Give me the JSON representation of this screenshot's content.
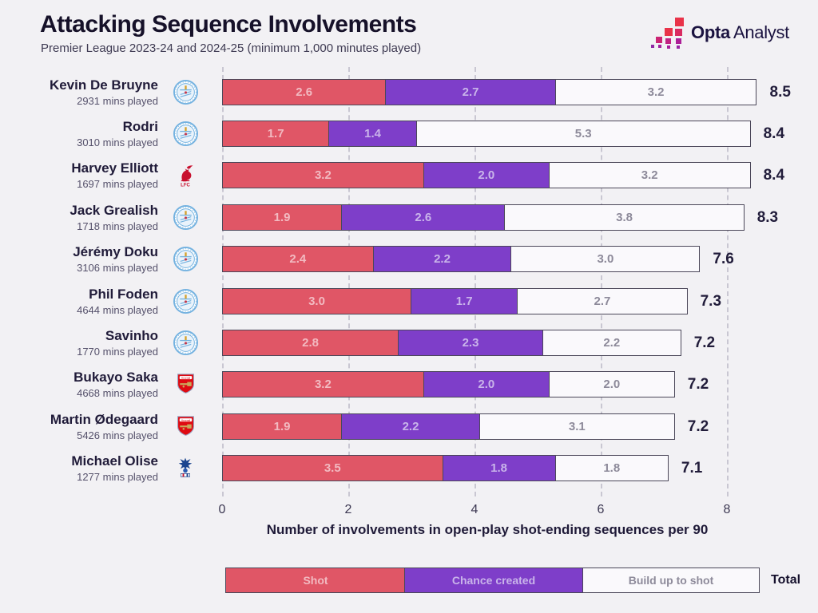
{
  "header": {
    "title": "Attacking Sequence Involvements",
    "subtitle": "Premier League 2023-24 and 2024-25 (minimum 1,000 minutes played)",
    "logo": {
      "bold": "Opta",
      "regular": "Analyst"
    }
  },
  "chart_data": {
    "type": "bar",
    "orientation": "horizontal",
    "stacked": true,
    "xlabel": "Number of involvements in open-play shot-ending sequences per 90",
    "xticks": [
      0,
      2,
      4,
      6,
      8
    ],
    "xlim": [
      0,
      8.5
    ],
    "grid": "dashed-vertical",
    "legend_position": "bottom",
    "total_label": "Total",
    "series_labels": [
      "Shot",
      "Chance created",
      "Build up to shot"
    ],
    "colors": {
      "shot": "#e05666",
      "shot_text": "#f2bac1",
      "chance_created": "#7e3ec9",
      "chance_created_text": "#c9b4ea",
      "build_up": "#faf9fc",
      "build_up_text": "#8d8a9a",
      "background": "#f2f1f4",
      "bar_border": "#4b4759",
      "gridline": "#c9c7d2",
      "ink": "#161129"
    },
    "players": [
      {
        "name": "Kevin De Bruyne",
        "mins": "2931 mins played",
        "club": "man-city",
        "values": [
          2.6,
          2.7,
          3.2
        ],
        "total": "8.5"
      },
      {
        "name": "Rodri",
        "mins": "3010 mins played",
        "club": "man-city",
        "values": [
          1.7,
          1.4,
          5.3
        ],
        "total": "8.4"
      },
      {
        "name": "Harvey Elliott",
        "mins": "1697 mins played",
        "club": "liverpool",
        "values": [
          3.2,
          2.0,
          3.2
        ],
        "total": "8.4"
      },
      {
        "name": "Jack Grealish",
        "mins": "1718 mins played",
        "club": "man-city",
        "values": [
          1.9,
          2.6,
          3.8
        ],
        "total": "8.3"
      },
      {
        "name": "Jérémy Doku",
        "mins": "3106 mins played",
        "club": "man-city",
        "values": [
          2.4,
          2.2,
          3.0
        ],
        "total": "7.6"
      },
      {
        "name": "Phil Foden",
        "mins": "4644 mins played",
        "club": "man-city",
        "values": [
          3.0,
          1.7,
          2.7
        ],
        "total": "7.3"
      },
      {
        "name": "Savinho",
        "mins": "1770 mins played",
        "club": "man-city",
        "values": [
          2.8,
          2.3,
          2.2
        ],
        "total": "7.2"
      },
      {
        "name": "Bukayo Saka",
        "mins": "4668 mins played",
        "club": "arsenal",
        "values": [
          3.2,
          2.0,
          2.0
        ],
        "total": "7.2"
      },
      {
        "name": "Martin Ødegaard",
        "mins": "5426 mins played",
        "club": "arsenal",
        "values": [
          1.9,
          2.2,
          3.1
        ],
        "total": "7.2"
      },
      {
        "name": "Michael Olise",
        "mins": "1277 mins played",
        "club": "crystal-palace",
        "values": [
          3.5,
          1.8,
          1.8
        ],
        "total": "7.1"
      }
    ]
  }
}
